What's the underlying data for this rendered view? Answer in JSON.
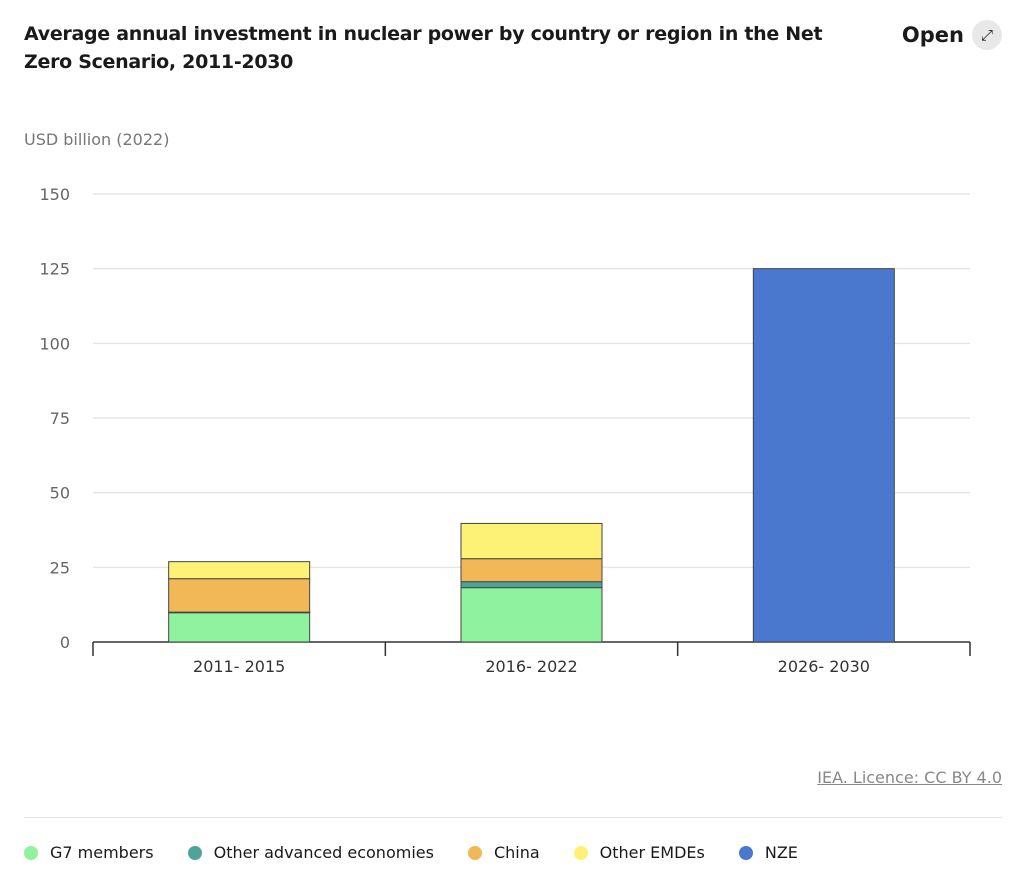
{
  "title": "Average annual investment in nuclear power by country or region in the Net Zero Scenario, 2011-2030",
  "open_label": "Open",
  "open_icon": "expand-arrows-icon",
  "credit": "IEA. Licence: CC BY 4.0",
  "chart_data": {
    "type": "bar",
    "stacked": true,
    "title": "Average annual investment in nuclear power by country or region in the Net Zero Scenario, 2011-2030",
    "ylabel": "USD billion (2022)",
    "xlabel": "",
    "ylim": [
      0,
      150
    ],
    "yticks": [
      "0",
      "25",
      "50",
      "75",
      "100",
      "125",
      "150"
    ],
    "grid": true,
    "legend_position": "bottom",
    "categories": [
      "2011- 2015",
      "2016- 2022",
      "2026- 2030"
    ],
    "series": [
      {
        "name": "G7 members",
        "color": "#8ef29e",
        "values": [
          9.8,
          18.2,
          0
        ]
      },
      {
        "name": "Other advanced economies",
        "color": "#4ea597",
        "values": [
          0.2,
          2.0,
          0
        ]
      },
      {
        "name": "China",
        "color": "#f2b857",
        "values": [
          11.2,
          7.7,
          0
        ]
      },
      {
        "name": "Other EMDEs",
        "color": "#fdf276",
        "values": [
          5.7,
          11.8,
          0
        ]
      },
      {
        "name": "NZE",
        "color": "#4a78ce",
        "values": [
          0,
          0,
          125
        ]
      }
    ]
  }
}
